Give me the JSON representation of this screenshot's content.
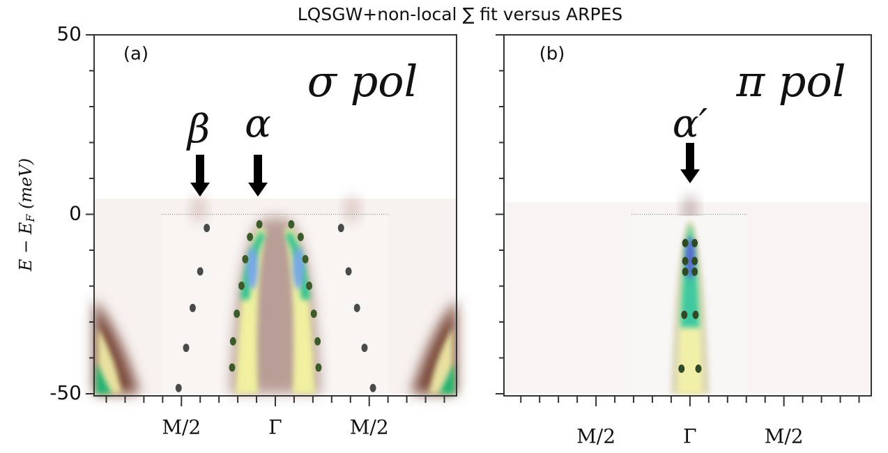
{
  "chart_data": [
    {
      "type": "scatter",
      "title": "LQSGW+non-local ∑ fit versus ARPES",
      "y_label": [
        "E − E",
        "F",
        " (meV)"
      ],
      "panel_label": "(a)",
      "polarization": "σ pol",
      "annotations": [
        "β",
        "α"
      ],
      "xlim": [
        -1.93,
        1.93
      ],
      "ylim": [
        -50,
        50
      ],
      "xticks": [
        {
          "value": -1,
          "label": "M/2"
        },
        {
          "value": 0,
          "label": "Γ"
        },
        {
          "value": 1,
          "label": "M/2"
        }
      ],
      "xminorticks": [
        -1.8,
        -1.6,
        -1.4,
        -1.2,
        -0.8,
        -0.6,
        -0.4,
        -0.2,
        0.2,
        0.4,
        0.6,
        0.8,
        1.2,
        1.4,
        1.6,
        1.8
      ],
      "yticks": [
        -50,
        0,
        50
      ],
      "yminorticks": [
        -40,
        -30,
        -20,
        -10,
        10,
        20,
        30,
        40
      ],
      "show_ytick_labels": true,
      "hline": 0,
      "series": [
        {
          "name": "β left",
          "color": "#4a4a4a",
          "x": [
            -0.73,
            -0.8,
            -0.88,
            -0.95,
            -1.03
          ],
          "values": [
            -3.8,
            -15.9,
            -26.1,
            -37.2,
            -48.4
          ]
        },
        {
          "name": "β right",
          "color": "#4a4a4a",
          "x": [
            0.7,
            0.78,
            0.87,
            0.95,
            1.04
          ],
          "values": [
            -3.8,
            -15.9,
            -26.1,
            -37.2,
            -48.4
          ]
        },
        {
          "name": "α left",
          "color": "#3d5a2a",
          "x": [
            -0.17,
            -0.27,
            -0.32,
            -0.36,
            -0.41,
            -0.45,
            -0.46
          ],
          "values": [
            -2.8,
            -6.3,
            -12.5,
            -19.9,
            -27.7,
            -35.4,
            -42.7
          ]
        },
        {
          "name": "α right",
          "color": "#3d5a2a",
          "x": [
            0.17,
            0.27,
            0.32,
            0.36,
            0.41,
            0.45,
            0.46
          ],
          "values": [
            -2.8,
            -6.3,
            -12.5,
            -19.9,
            -27.7,
            -35.4,
            -42.7
          ]
        }
      ]
    },
    {
      "type": "scatter",
      "panel_label": "(b)",
      "polarization": "π pol",
      "annotations": [
        "α′"
      ],
      "xlim": [
        -1.98,
        1.93
      ],
      "ylim": [
        -50,
        50
      ],
      "xticks": [
        {
          "value": -1,
          "label": "M/2"
        },
        {
          "value": 0,
          "label": "Γ"
        },
        {
          "value": 1,
          "label": "M/2"
        }
      ],
      "xminorticks": [
        -1.8,
        -1.6,
        -1.4,
        -1.2,
        -0.8,
        -0.6,
        -0.4,
        -0.2,
        0.2,
        0.4,
        0.6,
        0.8,
        1.2,
        1.4,
        1.6,
        1.8
      ],
      "yticks": [
        -50,
        0,
        50
      ],
      "yminorticks": [
        -40,
        -30,
        -20,
        -10,
        10,
        20,
        30,
        40
      ],
      "show_ytick_labels": false,
      "hline": 0,
      "series": [
        {
          "name": "α′",
          "color": "#2f4a26",
          "x": [
            -0.05,
            0.05,
            -0.05,
            0.05,
            -0.05,
            0.05,
            -0.06,
            0.06,
            -0.09,
            0.09
          ],
          "values": [
            -8,
            -8,
            -13,
            -13,
            -16,
            -16,
            -28,
            -28,
            -43,
            -43
          ]
        }
      ]
    }
  ]
}
